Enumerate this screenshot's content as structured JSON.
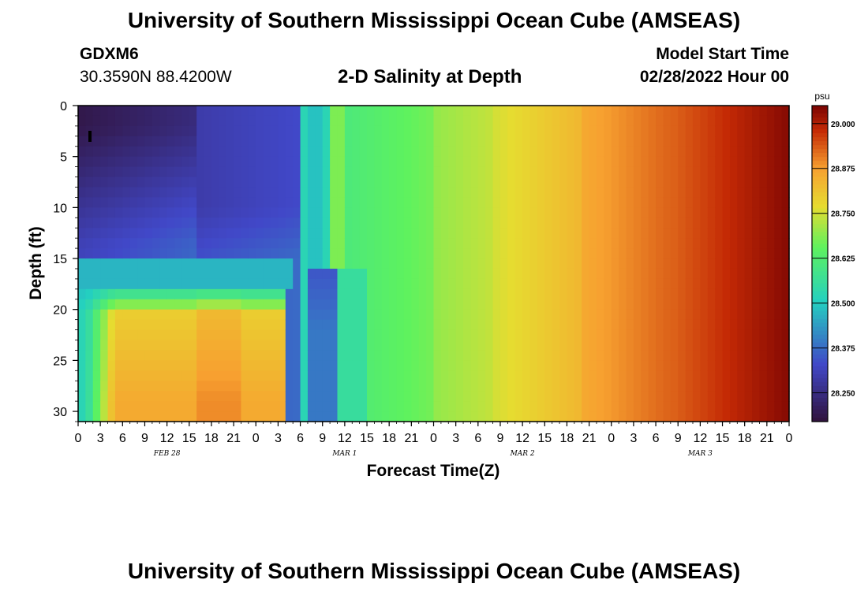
{
  "page": {
    "title": "University of Southern Mississippi Ocean Cube (AMSEAS)",
    "title_repeat": "University of Southern Mississippi Ocean Cube (AMSEAS)",
    "station_id": "GDXM6",
    "station_coords": "30.3590N  88.4200W",
    "subtitle": "2-D Salinity at Depth",
    "start_label": "Model Start Time",
    "start_value": "02/28/2022 Hour 00"
  },
  "chart_data": {
    "type": "heatmap",
    "title": "2-D Salinity at Depth",
    "xlabel": "Forecast Time(Z)",
    "ylabel": "Depth (ft)",
    "ylim": [
      0,
      31
    ],
    "y_ticks": [
      0,
      5,
      10,
      15,
      20,
      25,
      30
    ],
    "x_tick_labels": [
      "0",
      "3",
      "6",
      "9",
      "12",
      "15",
      "18",
      "21",
      "0",
      "3",
      "6",
      "9",
      "12",
      "15",
      "18",
      "21",
      "0",
      "3",
      "6",
      "9",
      "12",
      "15",
      "18",
      "21",
      "0",
      "3",
      "6",
      "9",
      "12",
      "15",
      "18",
      "21",
      "0"
    ],
    "date_labels": [
      "FEB 28",
      "MAR 1",
      "MAR 2",
      "MAR 3"
    ],
    "colorbar": {
      "unit": "psu",
      "ticks": [
        "28.250",
        "28.375",
        "28.500",
        "28.625",
        "28.750",
        "28.875",
        "29.000"
      ],
      "tick_values": [
        28.25,
        28.375,
        28.5,
        28.625,
        28.75,
        28.875,
        29.0
      ],
      "range": [
        28.17,
        29.05
      ]
    },
    "colors": {
      "low": "#30123b",
      "blue": "#4148c8",
      "cyan": "#24d0c0",
      "green": "#5ef25e",
      "yellow": "#e6dc30",
      "orange": "#f7a030",
      "red": "#c42a05",
      "high": "#7a0403"
    }
  }
}
